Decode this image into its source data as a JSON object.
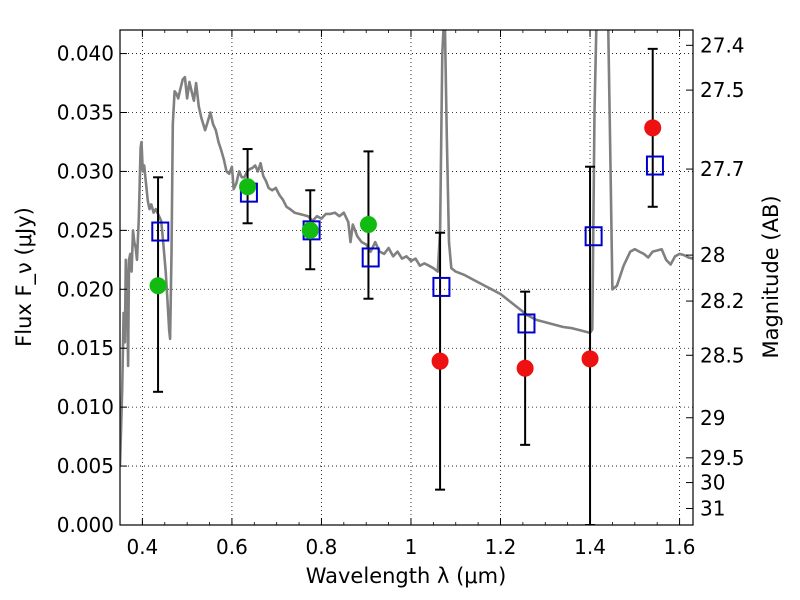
{
  "chart_data": {
    "type": "scatter",
    "xlabel": "Wavelength λ (μm)",
    "ylabel": "Flux F_ν (μJy)",
    "y2label": "Magnitude (AB)",
    "xlim": [
      0.35,
      1.63
    ],
    "ylim": [
      0.0,
      0.042
    ],
    "grid": true,
    "x_ticks": [
      0.4,
      0.6,
      0.8,
      1.0,
      1.2,
      1.4,
      1.6
    ],
    "x_tick_labels": [
      "0.4",
      "0.6",
      "0.8",
      "1",
      "1.2",
      "1.4",
      "1.6"
    ],
    "y_ticks": [
      0.0,
      0.005,
      0.01,
      0.015,
      0.02,
      0.025,
      0.03,
      0.035,
      0.04
    ],
    "y_tick_labels": [
      "0.000",
      "0.005",
      "0.010",
      "0.015",
      "0.020",
      "0.025",
      "0.030",
      "0.035",
      "0.040"
    ],
    "y2_tick_labels": [
      "27.4",
      "27.5",
      "27.7",
      "28",
      "28.2",
      "28.5",
      "29",
      "29.5",
      "30",
      "31"
    ],
    "y2_tick_flux": [
      0.0407,
      0.0369,
      0.0302,
      0.0229,
      0.019,
      0.0144,
      0.0091,
      0.0057,
      0.0036,
      0.0014
    ],
    "model_spectrum": {
      "color": "#808080",
      "points": [
        [
          0.35,
          0.005
        ],
        [
          0.355,
          0.0115
        ],
        [
          0.358,
          0.018
        ],
        [
          0.361,
          0.0155
        ],
        [
          0.363,
          0.0225
        ],
        [
          0.366,
          0.02
        ],
        [
          0.368,
          0.0135
        ],
        [
          0.37,
          0.0225
        ],
        [
          0.373,
          0.023
        ],
        [
          0.376,
          0.0215
        ],
        [
          0.379,
          0.025
        ],
        [
          0.382,
          0.024
        ],
        [
          0.385,
          0.0235
        ],
        [
          0.388,
          0.0225
        ],
        [
          0.392,
          0.026
        ],
        [
          0.396,
          0.032
        ],
        [
          0.398,
          0.0325
        ],
        [
          0.401,
          0.03
        ],
        [
          0.404,
          0.0305
        ],
        [
          0.408,
          0.029
        ],
        [
          0.412,
          0.0275
        ],
        [
          0.416,
          0.0268
        ],
        [
          0.42,
          0.0272
        ],
        [
          0.425,
          0.0265
        ],
        [
          0.43,
          0.0268
        ],
        [
          0.436,
          0.0263
        ],
        [
          0.442,
          0.0258
        ],
        [
          0.447,
          0.0238
        ],
        [
          0.452,
          0.0215
        ],
        [
          0.456,
          0.019
        ],
        [
          0.46,
          0.0165
        ],
        [
          0.462,
          0.0158
        ],
        [
          0.465,
          0.023
        ],
        [
          0.468,
          0.034
        ],
        [
          0.472,
          0.0368
        ],
        [
          0.476,
          0.0366
        ],
        [
          0.48,
          0.0362
        ],
        [
          0.485,
          0.037
        ],
        [
          0.49,
          0.0378
        ],
        [
          0.495,
          0.038
        ],
        [
          0.5,
          0.0362
        ],
        [
          0.505,
          0.0376
        ],
        [
          0.51,
          0.0368
        ],
        [
          0.515,
          0.036
        ],
        [
          0.52,
          0.0375
        ],
        [
          0.526,
          0.0355
        ],
        [
          0.532,
          0.0345
        ],
        [
          0.54,
          0.0335
        ],
        [
          0.546,
          0.0342
        ],
        [
          0.552,
          0.035
        ],
        [
          0.558,
          0.034
        ],
        [
          0.564,
          0.0335
        ],
        [
          0.57,
          0.0325
        ],
        [
          0.576,
          0.0318
        ],
        [
          0.582,
          0.031
        ],
        [
          0.588,
          0.03
        ],
        [
          0.594,
          0.0298
        ],
        [
          0.6,
          0.0304
        ],
        [
          0.604,
          0.0285
        ],
        [
          0.61,
          0.029
        ],
        [
          0.616,
          0.03
        ],
        [
          0.622,
          0.0295
        ],
        [
          0.628,
          0.0295
        ],
        [
          0.634,
          0.03
        ],
        [
          0.64,
          0.0302
        ],
        [
          0.646,
          0.0303
        ],
        [
          0.652,
          0.0305
        ],
        [
          0.658,
          0.03
        ],
        [
          0.664,
          0.0307
        ],
        [
          0.67,
          0.0296
        ],
        [
          0.676,
          0.0292
        ],
        [
          0.682,
          0.0286
        ],
        [
          0.69,
          0.0284
        ],
        [
          0.698,
          0.0286
        ],
        [
          0.706,
          0.028
        ],
        [
          0.714,
          0.0276
        ],
        [
          0.722,
          0.027
        ],
        [
          0.73,
          0.0268
        ],
        [
          0.74,
          0.0265
        ],
        [
          0.75,
          0.0264
        ],
        [
          0.76,
          0.0263
        ],
        [
          0.77,
          0.0262
        ],
        [
          0.78,
          0.0258
        ],
        [
          0.79,
          0.0262
        ],
        [
          0.8,
          0.026
        ],
        [
          0.81,
          0.0264
        ],
        [
          0.82,
          0.0264
        ],
        [
          0.83,
          0.0265
        ],
        [
          0.84,
          0.0262
        ],
        [
          0.85,
          0.0265
        ],
        [
          0.86,
          0.0257
        ],
        [
          0.865,
          0.024
        ],
        [
          0.87,
          0.0255
        ],
        [
          0.88,
          0.0245
        ],
        [
          0.89,
          0.024
        ],
        [
          0.9,
          0.0238
        ],
        [
          0.91,
          0.0232
        ],
        [
          0.92,
          0.024
        ],
        [
          0.93,
          0.0232
        ],
        [
          0.94,
          0.023
        ],
        [
          0.95,
          0.0235
        ],
        [
          0.96,
          0.0228
        ],
        [
          0.97,
          0.0232
        ],
        [
          0.98,
          0.0226
        ],
        [
          0.99,
          0.0228
        ],
        [
          1.0,
          0.0224
        ],
        [
          1.01,
          0.0226
        ],
        [
          1.02,
          0.022
        ],
        [
          1.03,
          0.0222
        ],
        [
          1.04,
          0.022
        ],
        [
          1.05,
          0.0218
        ],
        [
          1.06,
          0.0215
        ],
        [
          1.065,
          0.025
        ],
        [
          1.07,
          0.04
        ],
        [
          1.075,
          0.044
        ],
        [
          1.08,
          0.033
        ],
        [
          1.085,
          0.024
        ],
        [
          1.09,
          0.0218
        ],
        [
          1.1,
          0.0215
        ],
        [
          1.12,
          0.0212
        ],
        [
          1.14,
          0.0208
        ],
        [
          1.16,
          0.0204
        ],
        [
          1.18,
          0.02
        ],
        [
          1.2,
          0.0196
        ],
        [
          1.22,
          0.019
        ],
        [
          1.24,
          0.0184
        ],
        [
          1.26,
          0.0178
        ],
        [
          1.28,
          0.0174
        ],
        [
          1.3,
          0.0172
        ],
        [
          1.32,
          0.017
        ],
        [
          1.34,
          0.0168
        ],
        [
          1.36,
          0.0167
        ],
        [
          1.38,
          0.0165
        ],
        [
          1.4,
          0.0163
        ],
        [
          1.405,
          0.0166
        ],
        [
          1.41,
          0.035
        ],
        [
          1.415,
          0.044
        ],
        [
          1.44,
          0.044
        ],
        [
          1.445,
          0.032
        ],
        [
          1.45,
          0.02
        ],
        [
          1.46,
          0.0203
        ],
        [
          1.475,
          0.022
        ],
        [
          1.49,
          0.0232
        ],
        [
          1.5,
          0.0234
        ],
        [
          1.51,
          0.0232
        ],
        [
          1.52,
          0.023
        ],
        [
          1.53,
          0.0227
        ],
        [
          1.54,
          0.0232
        ],
        [
          1.56,
          0.0234
        ],
        [
          1.57,
          0.0225
        ],
        [
          1.58,
          0.0221
        ],
        [
          1.59,
          0.0228
        ],
        [
          1.6,
          0.023
        ],
        [
          1.61,
          0.0229
        ],
        [
          1.62,
          0.0227
        ],
        [
          1.63,
          0.0226
        ]
      ]
    },
    "error_bars": [
      {
        "x": 0.435,
        "low": 0.0113,
        "high": 0.0295
      },
      {
        "x": 0.635,
        "low": 0.0256,
        "high": 0.0319
      },
      {
        "x": 0.775,
        "low": 0.0217,
        "high": 0.0284
      },
      {
        "x": 0.905,
        "low": 0.0192,
        "high": 0.0317
      },
      {
        "x": 1.065,
        "low": 0.003,
        "high": 0.0248
      },
      {
        "x": 1.255,
        "low": 0.0068,
        "high": 0.0198
      },
      {
        "x": 1.4,
        "low": 0.0,
        "high": 0.0304
      },
      {
        "x": 1.54,
        "low": 0.027,
        "high": 0.0404
      }
    ],
    "model_photometry": {
      "color": "#0000cc",
      "points": [
        [
          0.44,
          0.0249
        ],
        [
          0.638,
          0.0282
        ],
        [
          0.778,
          0.025
        ],
        [
          0.91,
          0.0227
        ],
        [
          1.068,
          0.0202
        ],
        [
          1.258,
          0.0171
        ],
        [
          1.408,
          0.0245
        ],
        [
          1.545,
          0.0305
        ]
      ]
    },
    "observed_detections": {
      "color": "#11bb11",
      "points": [
        [
          0.435,
          0.0203
        ],
        [
          0.635,
          0.0287
        ],
        [
          0.775,
          0.025
        ],
        [
          0.905,
          0.0255
        ]
      ]
    },
    "observed_other": {
      "color": "#ee1111",
      "points": [
        [
          1.065,
          0.0139
        ],
        [
          1.255,
          0.0133
        ],
        [
          1.4,
          0.0141
        ],
        [
          1.54,
          0.0337
        ]
      ]
    }
  }
}
